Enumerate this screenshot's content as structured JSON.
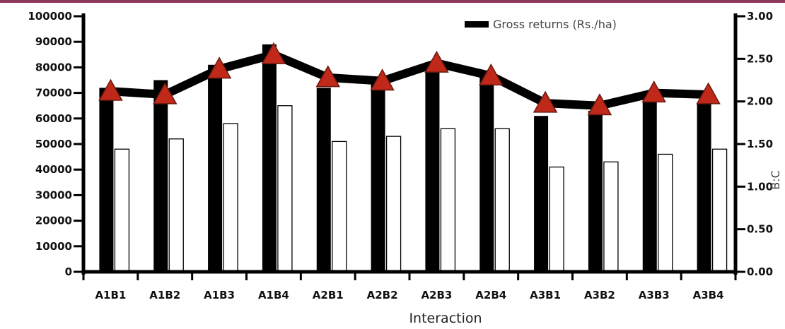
{
  "chart_data": {
    "type": "bar",
    "xlabel": "Interaction",
    "ylabel_right": "B:C",
    "categories": [
      "A1B1",
      "A1B2",
      "A1B3",
      "A1B4",
      "A2B1",
      "A2B2",
      "A2B3",
      "A2B4",
      "A3B1",
      "A3B2",
      "A3B3",
      "A3B4"
    ],
    "y_left": {
      "ylim": [
        0,
        100000
      ],
      "ticks": [
        "0",
        "10000",
        "20000",
        "30000",
        "40000",
        "50000",
        "60000",
        "70000",
        "80000",
        "90000",
        "100000"
      ]
    },
    "y_right": {
      "ylim": [
        0,
        3
      ],
      "ticks": [
        "0.00",
        "0.50",
        "1.00",
        "1.50",
        "2.00",
        "2.50",
        "3.00"
      ]
    },
    "series": [
      {
        "name": "Gross returns (Rs./ha)",
        "kind": "bar",
        "axis": "left",
        "color": "#000000",
        "values": [
          72000,
          75000,
          81000,
          89000,
          72000,
          75000,
          82000,
          78000,
          61000,
          63000,
          68000,
          66000
        ]
      },
      {
        "kind": "bar",
        "axis": "left",
        "color": "#ffffff",
        "values": [
          48000,
          52000,
          58000,
          65000,
          51000,
          53000,
          56000,
          56000,
          41000,
          43000,
          46000,
          48000
        ]
      },
      {
        "kind": "line",
        "axis": "right",
        "color": "#000000",
        "marker": "triangle",
        "marker_color": "#c0281a",
        "values": [
          2.12,
          2.08,
          2.38,
          2.55,
          2.28,
          2.24,
          2.45,
          2.3,
          1.98,
          1.95,
          2.1,
          2.08
        ]
      }
    ],
    "legend": {
      "position": "top-right",
      "entries": [
        "Gross returns (Rs./ha)"
      ]
    },
    "grid": false
  }
}
